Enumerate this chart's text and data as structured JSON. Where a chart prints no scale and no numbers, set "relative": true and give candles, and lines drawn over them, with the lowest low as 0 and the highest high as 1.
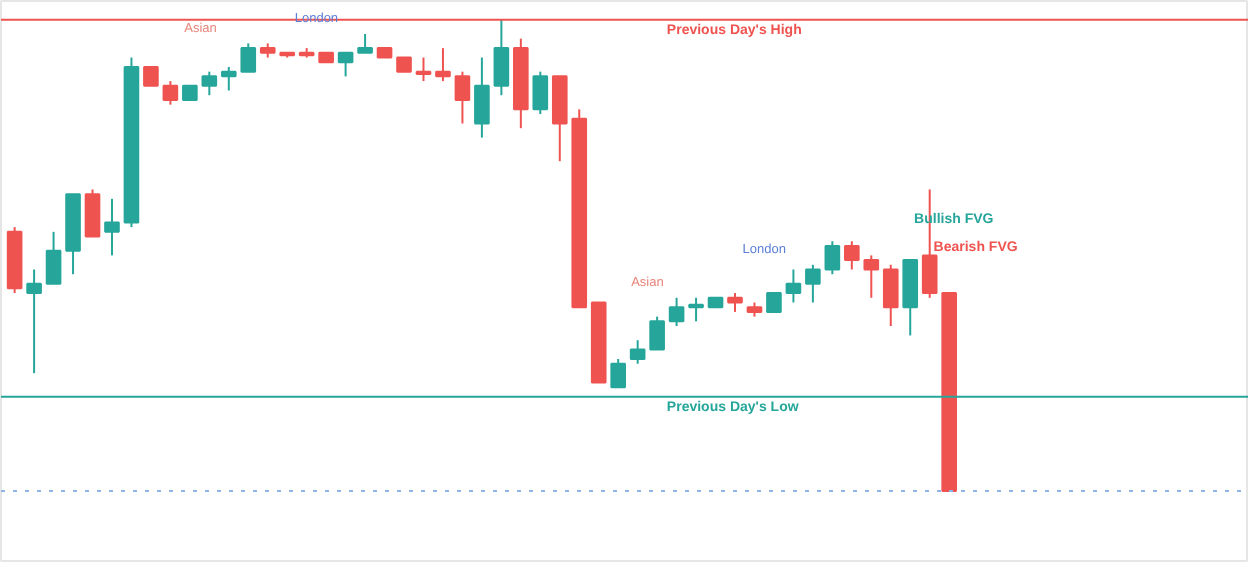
{
  "chart_data": {
    "type": "candlestick",
    "relative": true,
    "grid": false,
    "categories": [
      null,
      null,
      null,
      null,
      null,
      null,
      null,
      null,
      null,
      null,
      null,
      null,
      null,
      null,
      null,
      null,
      null,
      null,
      null,
      null,
      null,
      null,
      null,
      null,
      null,
      null,
      null,
      null,
      null,
      null,
      null,
      null,
      null,
      null,
      null,
      null,
      null,
      null,
      null,
      null,
      null,
      null,
      null,
      null,
      null,
      null,
      null,
      null,
      null
    ],
    "ohlc": [
      [
        0.55,
        0.56,
        0.42,
        0.43
      ],
      [
        0.42,
        0.47,
        0.25,
        0.44
      ],
      [
        0.44,
        0.55,
        0.44,
        0.51
      ],
      [
        0.51,
        0.63,
        0.46,
        0.63
      ],
      [
        0.63,
        0.64,
        0.54,
        0.54
      ],
      [
        0.55,
        0.62,
        0.5,
        0.57
      ],
      [
        0.57,
        0.92,
        0.56,
        0.9
      ],
      [
        0.9,
        0.9,
        0.86,
        0.86
      ],
      [
        0.86,
        0.87,
        0.82,
        0.83
      ],
      [
        0.83,
        0.86,
        0.83,
        0.86
      ],
      [
        0.86,
        0.89,
        0.84,
        0.88
      ],
      [
        0.88,
        0.9,
        0.85,
        0.89
      ],
      [
        0.89,
        0.95,
        0.89,
        0.94
      ],
      [
        0.94,
        0.95,
        0.92,
        0.93
      ],
      [
        0.93,
        0.93,
        0.92,
        0.925
      ],
      [
        0.93,
        0.94,
        0.92,
        0.925
      ],
      [
        0.93,
        0.93,
        0.91,
        0.91
      ],
      [
        0.91,
        0.93,
        0.88,
        0.93
      ],
      [
        0.93,
        0.97,
        0.93,
        0.94
      ],
      [
        0.94,
        0.94,
        0.92,
        0.92
      ],
      [
        0.92,
        0.92,
        0.89,
        0.89
      ],
      [
        0.89,
        0.92,
        0.87,
        0.885
      ],
      [
        0.89,
        0.94,
        0.87,
        0.88
      ],
      [
        0.88,
        0.89,
        0.78,
        0.83
      ],
      [
        0.78,
        0.92,
        0.75,
        0.86
      ],
      [
        0.86,
        1.0,
        0.84,
        0.94
      ],
      [
        0.94,
        0.96,
        0.77,
        0.81
      ],
      [
        0.81,
        0.89,
        0.8,
        0.88
      ],
      [
        0.88,
        0.88,
        0.7,
        0.78
      ],
      [
        0.79,
        0.81,
        0.39,
        0.39
      ],
      [
        0.4,
        0.4,
        0.23,
        0.23
      ],
      [
        0.22,
        0.28,
        0.22,
        0.27
      ],
      [
        0.28,
        0.32,
        0.27,
        0.3
      ],
      [
        0.3,
        0.37,
        0.3,
        0.36
      ],
      [
        0.36,
        0.41,
        0.35,
        0.39
      ],
      [
        0.39,
        0.41,
        0.36,
        0.395
      ],
      [
        0.39,
        0.41,
        0.39,
        0.41
      ],
      [
        0.41,
        0.42,
        0.38,
        0.4
      ],
      [
        0.39,
        0.4,
        0.37,
        0.38
      ],
      [
        0.38,
        0.42,
        0.38,
        0.42
      ],
      [
        0.42,
        0.47,
        0.4,
        0.44
      ],
      [
        0.44,
        0.48,
        0.4,
        0.47
      ],
      [
        0.47,
        0.53,
        0.46,
        0.52
      ],
      [
        0.52,
        0.53,
        0.47,
        0.49
      ],
      [
        0.49,
        0.5,
        0.41,
        0.47
      ],
      [
        0.47,
        0.48,
        0.35,
        0.39
      ],
      [
        0.39,
        0.49,
        0.33,
        0.49
      ],
      [
        0.5,
        0.64,
        0.41,
        0.42
      ],
      [
        0.42,
        0.42,
        0.0,
        0.0
      ]
    ],
    "colors": [
      "#ef5350",
      "#26a69a",
      "#26a69a",
      "#26a69a",
      "#ef5350",
      "#26a69a",
      "#26a69a",
      "#ef5350",
      "#ef5350",
      "#26a69a",
      "#26a69a",
      "#26a69a",
      "#26a69a",
      "#ef5350",
      "#ef5350",
      "#ef5350",
      "#ef5350",
      "#26a69a",
      "#26a69a",
      "#ef5350",
      "#ef5350",
      "#ef5350",
      "#ef5350",
      "#ef5350",
      "#26a69a",
      "#26a69a",
      "#ef5350",
      "#26a69a",
      "#ef5350",
      "#ef5350",
      "#ef5350",
      "#26a69a",
      "#26a69a",
      "#26a69a",
      "#26a69a",
      "#26a69a",
      "#26a69a",
      "#ef5350",
      "#ef5350",
      "#26a69a",
      "#26a69a",
      "#26a69a",
      "#26a69a",
      "#ef5350",
      "#ef5350",
      "#ef5350",
      "#26a69a",
      "#ef5350",
      "#ef5350"
    ],
    "ref_lines": [
      {
        "axis": "y",
        "value": 1.0,
        "label": "Previous Day's High",
        "color": "#ef5350"
      },
      {
        "axis": "y",
        "value": 0.2,
        "label": "Previous Day's Low",
        "color": "#26a69a"
      },
      {
        "axis": "y",
        "value": 0.0,
        "color": "#90b4e8",
        "line_style": "dotted"
      }
    ],
    "annotations": [
      "Asian",
      "London",
      "Asian",
      "London",
      "Bullish FVG",
      "Bearish FVG"
    ]
  }
}
